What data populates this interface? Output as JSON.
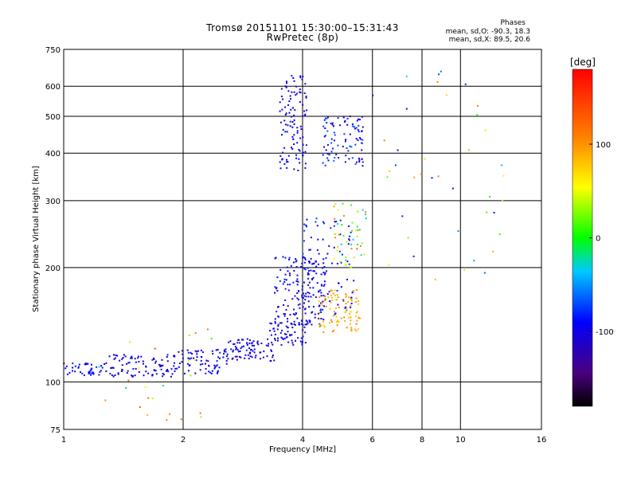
{
  "header": {
    "title_line1": "Tromsø 20151101 15:30:00–15:31:43",
    "title_line2": "RwPretec (8p)",
    "phases_title": "Phases",
    "phases_o": "mean, sd,O: -90.3, 18.3",
    "phases_x": "mean, sd,X:  89.5, 20.6"
  },
  "chart_data": {
    "type": "scatter",
    "xlabel": "Frequency [MHz]",
    "ylabel": "Stationary phase Virtual Height [km]",
    "xscale": "log",
    "yscale": "log",
    "xlim": [
      1,
      16
    ],
    "ylim": [
      75,
      750
    ],
    "xticks": [
      {
        "v": 1,
        "label": "1"
      },
      {
        "v": 2,
        "label": "2"
      },
      {
        "v": 4,
        "label": "4"
      },
      {
        "v": 6,
        "label": "6"
      },
      {
        "v": 8,
        "label": "8"
      },
      {
        "v": 10,
        "label": "10"
      },
      {
        "v": 16,
        "label": "16"
      }
    ],
    "yticks": [
      {
        "v": 75,
        "label": "75"
      },
      {
        "v": 100,
        "label": "100"
      },
      {
        "v": 200,
        "label": "200"
      },
      {
        "v": 300,
        "label": "300"
      },
      {
        "v": 400,
        "label": "400"
      },
      {
        "v": 500,
        "label": "500"
      },
      {
        "v": 600,
        "label": "600"
      },
      {
        "v": 750,
        "label": "750"
      }
    ],
    "grid": true,
    "colorbar": {
      "label": "[deg]",
      "range": [
        -180,
        180
      ],
      "ticks": [
        {
          "v": 100,
          "label": "100"
        },
        {
          "v": 0,
          "label": "0"
        },
        {
          "v": -100,
          "label": "-100"
        }
      ]
    },
    "clusters": [
      {
        "f": [
          1.0,
          1.3
        ],
        "h": [
          104,
          112
        ],
        "phase": [
          -110,
          -80
        ],
        "n": 45
      },
      {
        "f": [
          1.3,
          1.9
        ],
        "h": [
          103,
          118
        ],
        "phase": [
          -115,
          -80
        ],
        "n": 90
      },
      {
        "f": [
          1.9,
          2.6
        ],
        "h": [
          105,
          122
        ],
        "phase": [
          -115,
          -80
        ],
        "n": 80
      },
      {
        "f": [
          2.6,
          3.4
        ],
        "h": [
          113,
          130
        ],
        "phase": [
          -120,
          -80
        ],
        "n": 80
      },
      {
        "f": [
          3.3,
          4.1
        ],
        "h": [
          125,
          145
        ],
        "phase": [
          -120,
          -85
        ],
        "n": 60
      },
      {
        "f": [
          3.4,
          4.6
        ],
        "h": [
          140,
          215
        ],
        "phase": [
          -115,
          -80
        ],
        "n": 170
      },
      {
        "f": [
          4.0,
          5.4
        ],
        "h": [
          150,
          270
        ],
        "phase": [
          -110,
          -70
        ],
        "n": 90
      },
      {
        "f": [
          4.4,
          5.6
        ],
        "h": [
          135,
          175
        ],
        "phase": [
          70,
          110
        ],
        "n": 90
      },
      {
        "f": [
          4.8,
          5.8
        ],
        "h": [
          200,
          300
        ],
        "phase": [
          -40,
          120
        ],
        "n": 50
      },
      {
        "f": [
          3.5,
          4.1
        ],
        "h": [
          360,
          640
        ],
        "phase": [
          -120,
          -80
        ],
        "n": 110
      },
      {
        "f": [
          4.5,
          5.7
        ],
        "h": [
          370,
          500
        ],
        "phase": [
          -120,
          -60
        ],
        "n": 90
      },
      {
        "f": [
          6.0,
          13.0
        ],
        "h": [
          180,
          660
        ],
        "phase": [
          -150,
          120
        ],
        "n": 40
      },
      {
        "f": [
          1.1,
          2.4
        ],
        "h": [
          78,
          140
        ],
        "phase": [
          -40,
          140
        ],
        "n": 25
      }
    ]
  }
}
